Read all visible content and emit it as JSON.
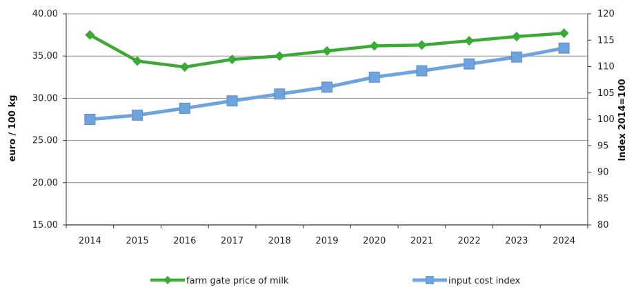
{
  "chart_data": {
    "type": "line",
    "categories": [
      "2014",
      "2015",
      "2016",
      "2017",
      "2018",
      "2019",
      "2020",
      "2021",
      "2022",
      "2023",
      "2024"
    ],
    "y_left": {
      "label": "euro / 100 kg",
      "lim": [
        15,
        40
      ],
      "ticks": [
        "15.00",
        "20.00",
        "25.00",
        "30.00",
        "35.00",
        "40.00"
      ],
      "tick_values": [
        15,
        20,
        25,
        30,
        35,
        40
      ]
    },
    "y_right": {
      "label": "Index 2014=100",
      "lim": [
        80,
        120
      ],
      "ticks": [
        "80",
        "85",
        "90",
        "95",
        "100",
        "105",
        "110",
        "115",
        "120"
      ],
      "tick_values": [
        80,
        85,
        90,
        95,
        100,
        105,
        110,
        115,
        120
      ]
    },
    "grid": true,
    "legend_position": "bottom",
    "series": [
      {
        "name": "farm gate price of milk",
        "axis": "left",
        "color": "#3aaa35",
        "marker": "diamond",
        "values": [
          37.5,
          34.4,
          33.7,
          34.6,
          35.0,
          35.6,
          36.2,
          36.3,
          36.8,
          37.3,
          37.7
        ]
      },
      {
        "name": "input cost index",
        "axis": "right",
        "color": "#6fa3dc",
        "marker": "square",
        "values": [
          100.0,
          100.8,
          102.1,
          103.5,
          104.8,
          106.1,
          108.0,
          109.2,
          110.5,
          111.8,
          113.5
        ]
      }
    ]
  }
}
